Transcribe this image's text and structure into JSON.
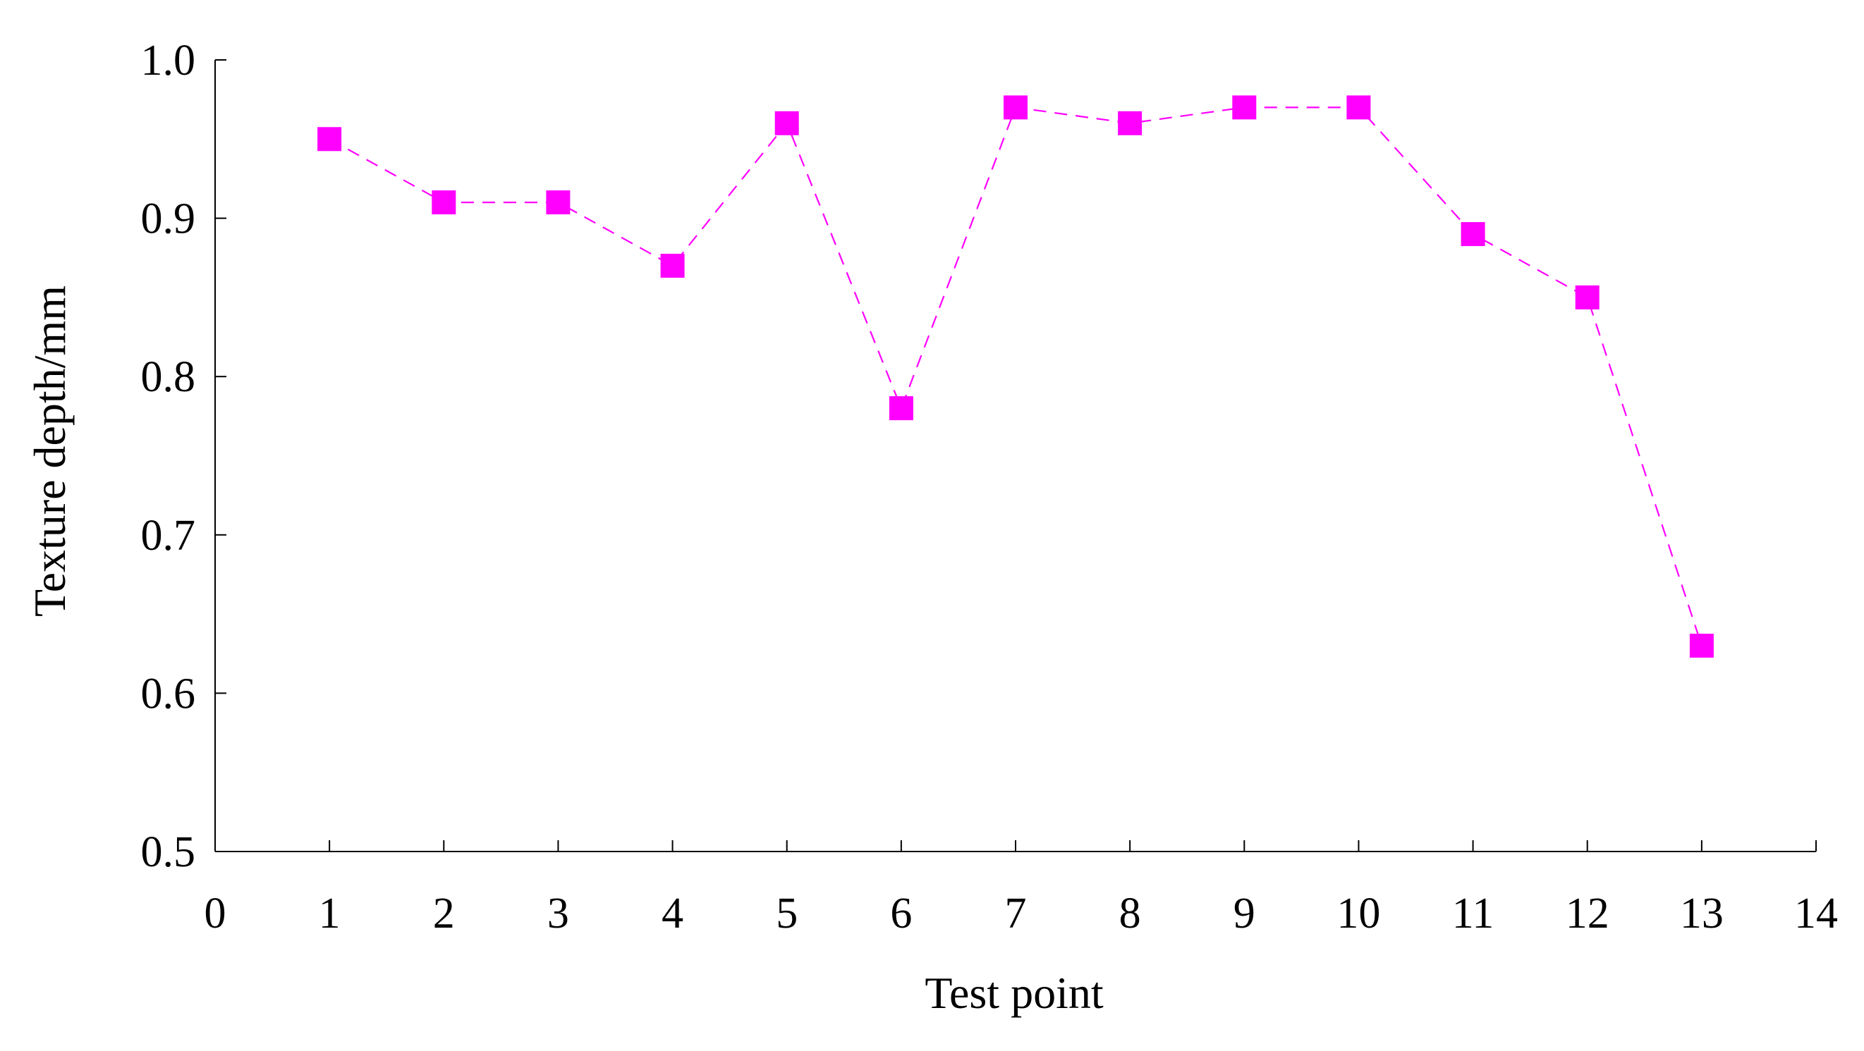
{
  "chart_data": {
    "type": "line",
    "xlabel": "Test point",
    "ylabel": "Texture depth/mm",
    "xlim": [
      0,
      14
    ],
    "ylim": [
      0.5,
      1.0
    ],
    "x_ticks": [
      "0",
      "1",
      "2",
      "3",
      "4",
      "5",
      "6",
      "7",
      "8",
      "9",
      "10",
      "11",
      "12",
      "13",
      "14"
    ],
    "y_ticks": [
      "0.5",
      "0.6",
      "0.7",
      "0.8",
      "0.9",
      "1.0"
    ],
    "grid": false,
    "legend": "none",
    "series": [
      {
        "x": [
          1,
          2,
          3,
          4,
          5,
          6,
          7,
          8,
          9,
          10,
          11,
          12,
          13
        ],
        "y": [
          0.95,
          0.91,
          0.91,
          0.87,
          0.96,
          0.78,
          0.97,
          0.96,
          0.97,
          0.97,
          0.89,
          0.85,
          0.63
        ],
        "color": "#ff00ff",
        "line_style": "dashed",
        "marker": "square"
      }
    ]
  }
}
